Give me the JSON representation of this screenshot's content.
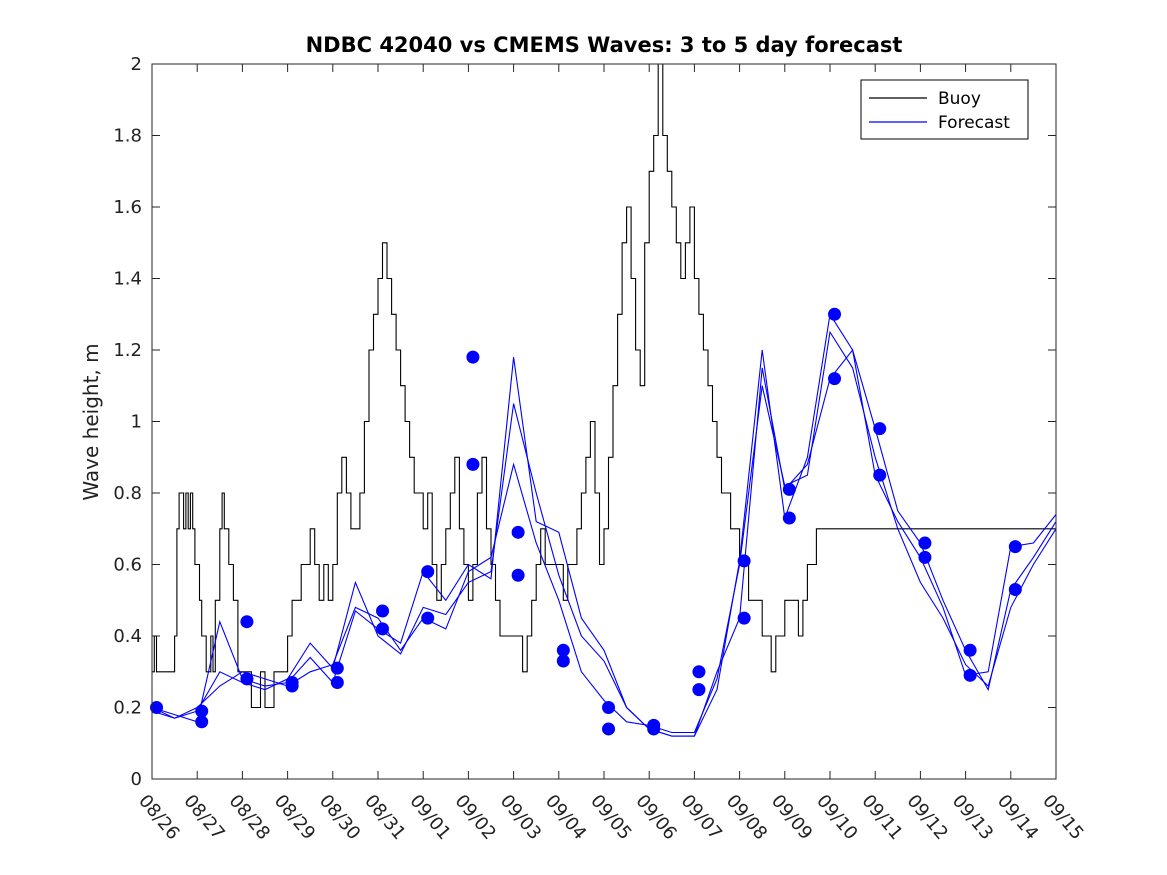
{
  "chart_data": {
    "type": "line",
    "title": "NDBC 42040 vs CMEMS Waves: 3 to 5 day forecast",
    "xlabel": "",
    "ylabel": "Wave height, m",
    "xlim": [
      0,
      20
    ],
    "ylim": [
      0,
      2
    ],
    "x_unit": "days since 08/26",
    "x_tick_values": [
      0,
      1,
      2,
      3,
      4,
      5,
      6,
      7,
      8,
      9,
      10,
      11,
      12,
      13,
      14,
      15,
      16,
      17,
      18,
      19,
      20
    ],
    "x_tick_labels": [
      "08/26",
      "08/27",
      "08/28",
      "08/29",
      "08/30",
      "08/31",
      "09/01",
      "09/02",
      "09/03",
      "09/04",
      "09/05",
      "09/06",
      "09/07",
      "09/08",
      "09/09",
      "09/10",
      "09/11",
      "09/12",
      "09/13",
      "09/14",
      "09/15"
    ],
    "y_tick_values": [
      0,
      0.2,
      0.4,
      0.6,
      0.8,
      1,
      1.2,
      1.4,
      1.6,
      1.8,
      2
    ],
    "y_tick_labels": [
      "0",
      "0.2",
      "0.4",
      "0.6",
      "0.8",
      "1",
      "1.2",
      "1.4",
      "1.6",
      "1.8",
      "2"
    ],
    "legend": {
      "position": "top-right",
      "entries": [
        "Buoy",
        "Forecast"
      ]
    },
    "colors": {
      "buoy": "#000000",
      "forecast": "#0000ff"
    },
    "series": [
      {
        "name": "Buoy",
        "style": "step",
        "x": [
          0,
          0.05,
          0.1,
          0.25,
          0.5,
          0.55,
          0.6,
          0.7,
          0.75,
          0.8,
          0.85,
          0.9,
          0.95,
          1.0,
          1.05,
          1.1,
          1.2,
          1.25,
          1.3,
          1.35,
          1.4,
          1.5,
          1.55,
          1.6,
          1.7,
          1.8,
          1.9,
          2.0,
          2.1,
          2.2,
          2.3,
          2.4,
          2.5,
          2.6,
          2.7,
          2.8,
          2.9,
          3.0,
          3.1,
          3.2,
          3.3,
          3.4,
          3.5,
          3.6,
          3.7,
          3.8,
          3.9,
          4.0,
          4.1,
          4.2,
          4.3,
          4.4,
          4.5,
          4.6,
          4.7,
          4.8,
          4.9,
          5.0,
          5.1,
          5.2,
          5.3,
          5.4,
          5.5,
          5.6,
          5.7,
          5.8,
          5.9,
          6.0,
          6.1,
          6.2,
          6.3,
          6.4,
          6.5,
          6.6,
          6.7,
          6.8,
          6.9,
          7.0,
          7.1,
          7.2,
          7.3,
          7.4,
          7.5,
          7.6,
          7.7,
          7.8,
          7.9,
          8.0,
          8.1,
          8.2,
          8.3,
          8.4,
          8.5,
          8.6,
          8.7,
          8.8,
          8.9,
          9.0,
          9.1,
          9.2,
          9.3,
          9.4,
          9.5,
          9.6,
          9.7,
          9.8,
          9.9,
          10.0,
          10.1,
          10.2,
          10.3,
          10.4,
          10.5,
          10.6,
          10.7,
          10.8,
          10.9,
          11.0,
          11.1,
          11.2,
          11.3,
          11.4,
          11.5,
          11.6,
          11.7,
          11.8,
          11.9,
          12.0,
          12.1,
          12.2,
          12.3,
          12.4,
          12.5,
          12.6,
          12.7,
          12.8,
          12.9,
          13.0,
          13.1,
          13.2,
          13.3,
          13.4,
          13.5,
          13.6,
          13.7,
          13.8,
          13.9,
          14.0,
          14.1,
          14.2,
          14.3,
          14.4,
          14.5,
          14.6,
          14.7,
          14.8,
          14.9,
          15.0,
          15.1,
          15.2,
          15.3,
          15.4,
          15.5,
          15.6,
          15.7,
          15.8,
          15.9,
          16.0,
          16.1,
          16.2,
          16.3,
          16.4,
          16.5,
          16.6,
          16.7,
          16.8,
          16.9,
          17.0,
          17.1,
          17.2,
          17.3,
          17.4,
          17.5,
          17.6,
          17.7,
          17.8,
          17.9,
          18.0,
          18.1,
          18.2,
          18.3,
          18.4,
          18.5,
          18.6,
          18.7,
          18.8,
          18.9,
          19.0,
          19.1,
          19.2,
          19.3,
          19.4,
          19.5,
          19.6,
          19.7,
          19.8,
          19.9,
          20.0
        ],
        "values": [
          0.3,
          0.4,
          0.3,
          0.3,
          0.4,
          0.7,
          0.8,
          0.7,
          0.8,
          0.7,
          0.8,
          0.7,
          0.6,
          0.6,
          0.5,
          0.4,
          0.3,
          0.3,
          0.4,
          0.3,
          0.5,
          0.7,
          0.8,
          0.7,
          0.6,
          0.5,
          0.3,
          0.3,
          0.3,
          0.2,
          0.2,
          0.3,
          0.2,
          0.2,
          0.3,
          0.3,
          0.3,
          0.4,
          0.5,
          0.5,
          0.6,
          0.6,
          0.7,
          0.6,
          0.5,
          0.6,
          0.5,
          0.6,
          0.8,
          0.9,
          0.8,
          0.7,
          0.7,
          0.8,
          1.0,
          1.2,
          1.3,
          1.4,
          1.5,
          1.4,
          1.3,
          1.2,
          1.1,
          1.0,
          0.9,
          0.8,
          0.8,
          0.7,
          0.8,
          0.6,
          0.5,
          0.6,
          0.7,
          0.8,
          0.9,
          0.7,
          0.6,
          0.5,
          0.6,
          0.8,
          0.9,
          0.7,
          0.6,
          0.5,
          0.4,
          0.4,
          0.4,
          0.4,
          0.4,
          0.3,
          0.4,
          0.5,
          0.6,
          0.7,
          0.6,
          0.6,
          0.6,
          0.6,
          0.5,
          0.6,
          0.6,
          0.7,
          0.8,
          0.9,
          1.0,
          0.8,
          0.6,
          0.7,
          0.9,
          1.1,
          1.3,
          1.5,
          1.6,
          1.4,
          1.2,
          1.1,
          1.5,
          1.7,
          1.8,
          2.0,
          1.8,
          1.7,
          1.6,
          1.5,
          1.4,
          1.5,
          1.6,
          1.4,
          1.3,
          1.2,
          1.1,
          1.0,
          0.9,
          0.8,
          0.8,
          0.7,
          0.7,
          0.6,
          0.6,
          0.5,
          0.5,
          0.5,
          0.4,
          0.4,
          0.3,
          0.4,
          0.4,
          0.5,
          0.5,
          0.5,
          0.4,
          0.5,
          0.6,
          0.6,
          0.7,
          0.7,
          0.7,
          0.7,
          0.7,
          0.7,
          0.7,
          0.7,
          0.7,
          0.7,
          0.7,
          0.7,
          0.7,
          0.7,
          0.7,
          0.7,
          0.7,
          0.7,
          0.7,
          0.7,
          0.7,
          0.7,
          0.7,
          0.7,
          0.7,
          0.7,
          0.7,
          0.7,
          0.7,
          0.7,
          0.7,
          0.7,
          0.7,
          0.7,
          0.7,
          0.7,
          0.7,
          0.7,
          0.7,
          0.7,
          0.7,
          0.7,
          0.7,
          0.7,
          0.7,
          0.7,
          0.7,
          0.7,
          0.7,
          0.7,
          0.7,
          0.7,
          0.7,
          0.7
        ]
      },
      {
        "name": "Forecast 1",
        "x": [
          0,
          0.5,
          1.0,
          1.5,
          2.0,
          2.5,
          3.0,
          3.5,
          4.0,
          4.5,
          5.0,
          5.5,
          6.0,
          6.5,
          7.0,
          7.5,
          8.0,
          8.5,
          9.0,
          9.5,
          10.0,
          10.5,
          11.0,
          11.5,
          12.0,
          12.5,
          13.0,
          13.5,
          14.0,
          14.5,
          15.0,
          15.5,
          16.0,
          16.5,
          17.0,
          17.5,
          18.0,
          18.5,
          19.0,
          19.5,
          20.0
        ],
        "values": [
          0.2,
          0.17,
          0.2,
          0.26,
          0.3,
          0.28,
          0.26,
          0.3,
          0.32,
          0.48,
          0.45,
          0.36,
          0.45,
          0.42,
          0.58,
          0.62,
          0.88,
          0.66,
          0.5,
          0.3,
          0.22,
          0.16,
          0.15,
          0.13,
          0.13,
          0.28,
          0.6,
          1.1,
          0.82,
          0.85,
          1.25,
          1.15,
          0.9,
          0.7,
          0.55,
          0.45,
          0.32,
          0.26,
          0.48,
          0.6,
          0.7
        ]
      },
      {
        "name": "Forecast 2",
        "x": [
          0,
          0.5,
          1.0,
          1.5,
          2.0,
          2.5,
          3.0,
          3.5,
          4.0,
          4.5,
          5.0,
          5.5,
          6.0,
          6.5,
          7.0,
          7.5,
          8.0,
          8.5,
          9.0,
          9.5,
          10.0,
          10.5,
          11.0,
          11.5,
          12.0,
          12.5,
          13.0,
          13.5,
          14.0,
          14.5,
          15.0,
          15.5,
          16.0,
          16.5,
          17.0,
          17.5,
          18.0,
          18.5,
          19.0,
          19.5,
          20.0
        ],
        "values": [
          0.2,
          0.18,
          0.16,
          0.44,
          0.28,
          0.26,
          0.27,
          0.34,
          0.27,
          0.47,
          0.42,
          0.38,
          0.58,
          0.5,
          0.6,
          0.56,
          1.18,
          0.72,
          0.69,
          0.45,
          0.36,
          0.2,
          0.14,
          0.12,
          0.12,
          0.25,
          0.61,
          1.2,
          0.73,
          0.9,
          1.3,
          1.2,
          0.98,
          0.75,
          0.66,
          0.5,
          0.36,
          0.25,
          0.53,
          0.62,
          0.72
        ]
      },
      {
        "name": "Forecast 3",
        "x": [
          0,
          0.5,
          1.0,
          1.5,
          2.0,
          2.5,
          3.0,
          3.5,
          4.0,
          4.5,
          5.0,
          5.5,
          6.0,
          6.5,
          7.0,
          7.5,
          8.0,
          8.5,
          9.0,
          9.5,
          10.0,
          10.5,
          11.0,
          11.5,
          12.0,
          12.5,
          13.0,
          13.5,
          14.0,
          14.5,
          15.0,
          15.5,
          16.0,
          16.5,
          17.0,
          17.5,
          18.0,
          18.5,
          19.0,
          19.5,
          20.0
        ],
        "values": [
          0.19,
          0.17,
          0.19,
          0.3,
          0.27,
          0.25,
          0.28,
          0.38,
          0.31,
          0.55,
          0.4,
          0.35,
          0.48,
          0.46,
          0.55,
          0.58,
          1.05,
          0.8,
          0.57,
          0.4,
          0.33,
          0.2,
          0.14,
          0.12,
          0.12,
          0.3,
          0.45,
          1.15,
          0.81,
          0.88,
          1.12,
          1.2,
          0.85,
          0.72,
          0.62,
          0.48,
          0.29,
          0.3,
          0.65,
          0.66,
          0.74
        ]
      }
    ],
    "markers": {
      "name": "Forecast start points",
      "x": [
        0.1,
        1.1,
        1.1,
        2.1,
        2.1,
        3.1,
        3.1,
        4.1,
        4.1,
        5.1,
        5.1,
        6.1,
        6.1,
        7.1,
        7.1,
        8.1,
        8.1,
        9.1,
        9.1,
        10.1,
        10.1,
        11.1,
        11.1,
        12.1,
        12.1,
        13.1,
        13.1,
        14.1,
        14.1,
        15.1,
        15.1,
        16.1,
        16.1,
        17.1,
        17.1,
        18.1,
        18.1,
        19.1,
        19.1
      ],
      "values": [
        0.2,
        0.19,
        0.16,
        0.44,
        0.28,
        0.27,
        0.26,
        0.31,
        0.27,
        0.47,
        0.42,
        0.58,
        0.45,
        0.88,
        1.18,
        0.69,
        0.57,
        0.36,
        0.33,
        0.2,
        0.14,
        0.15,
        0.14,
        0.3,
        0.25,
        0.61,
        0.45,
        0.81,
        0.73,
        1.3,
        1.12,
        0.98,
        0.85,
        0.66,
        0.62,
        0.36,
        0.29,
        0.65,
        0.53
      ]
    }
  }
}
